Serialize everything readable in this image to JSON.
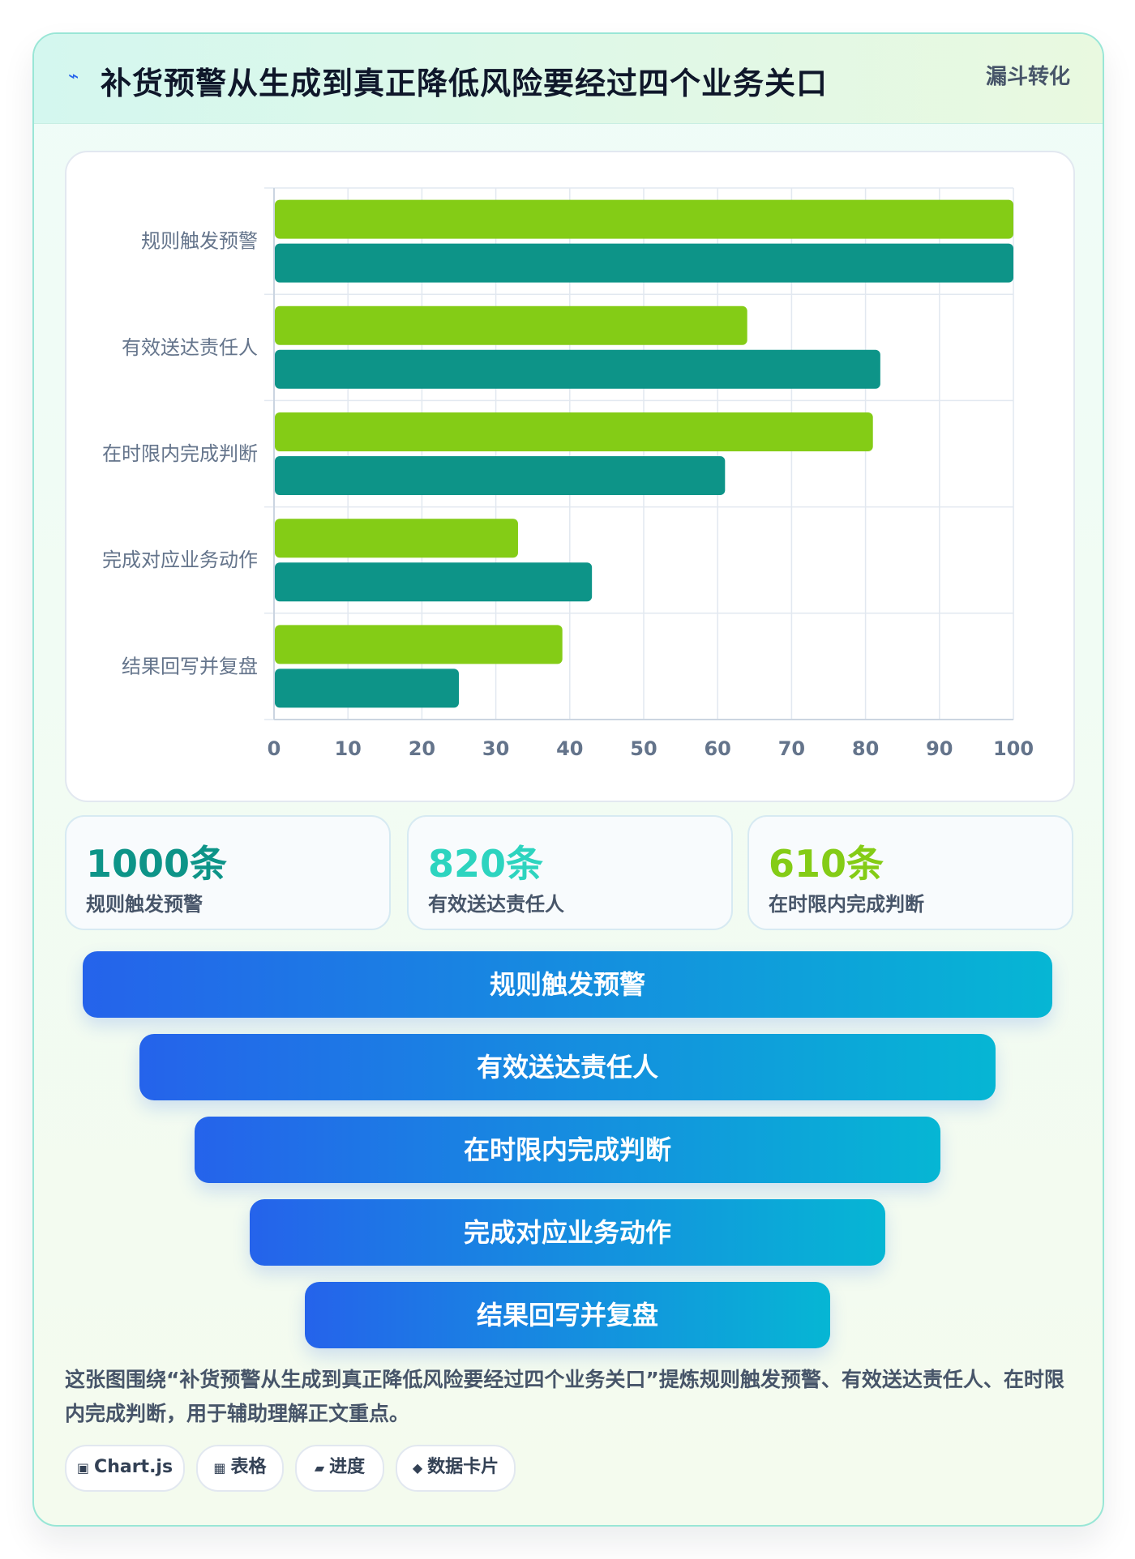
{
  "header": {
    "icon": "⌁",
    "title": "补货预警从生成到真正降低风险要经过四个业务关口",
    "tag": "漏斗转化"
  },
  "chart_data": {
    "type": "bar",
    "orientation": "horizontal",
    "categories": [
      "规则触发预警",
      "有效送达责任人",
      "在时限内完成判断",
      "完成对应业务动作",
      "结果回写并复盘"
    ],
    "series": [
      {
        "values": [
          100,
          64,
          81,
          33,
          39
        ],
        "color": "#84cc16"
      },
      {
        "values": [
          100,
          82,
          61,
          43,
          25
        ],
        "color": "#0d9488"
      }
    ],
    "xlim": [
      0,
      100
    ],
    "xticks": [
      0,
      10,
      20,
      30,
      40,
      50,
      60,
      70,
      80,
      90,
      100
    ],
    "grid": true
  },
  "kpis": [
    {
      "value": "1000条",
      "label": "规则触发预警",
      "color": "#0d9488"
    },
    {
      "value": "820条",
      "label": "有效送达责任人",
      "color": "#2dd4bf"
    },
    {
      "value": "610条",
      "label": "在时限内完成判断",
      "color": "#84cc16"
    }
  ],
  "funnel": [
    {
      "label": "规则触发预警"
    },
    {
      "label": "有效送达责任人"
    },
    {
      "label": "在时限内完成判断"
    },
    {
      "label": "完成对应业务动作"
    },
    {
      "label": "结果回写并复盘"
    }
  ],
  "description": "这张图围绕“补货预警从生成到真正降低风险要经过四个业务关口”提炼规则触发预警、有效送达责任人、在时限内完成判断，用于辅助理解正文重点。",
  "tags": [
    {
      "icon": "▣",
      "label": "Chart.js"
    },
    {
      "icon": "▦",
      "label": "表格"
    },
    {
      "icon": "▰",
      "label": "进度"
    },
    {
      "icon": "◆",
      "label": "数据卡片"
    }
  ]
}
